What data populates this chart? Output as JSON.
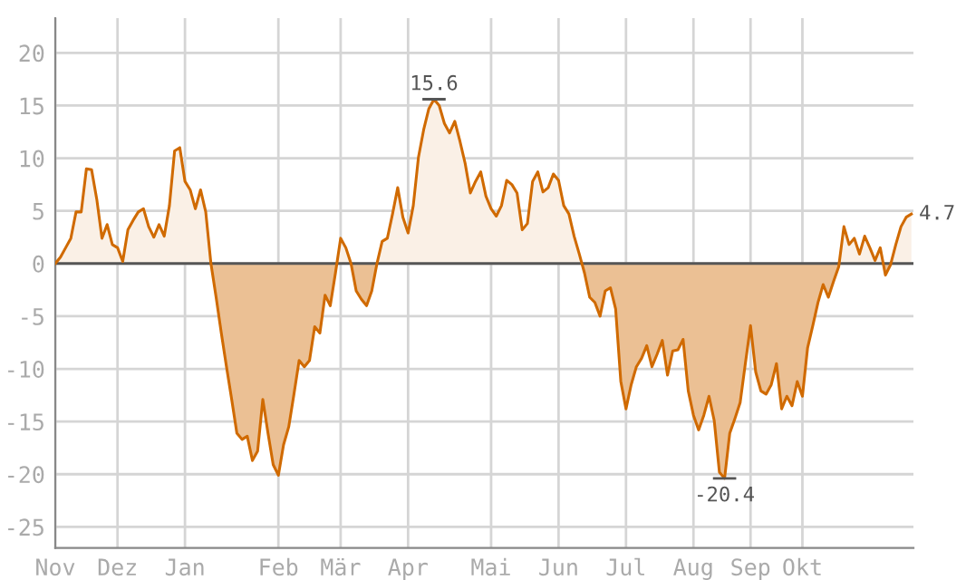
{
  "chart_data": {
    "type": "area",
    "categories": [
      "Nov",
      null,
      null,
      null,
      null,
      null,
      null,
      null,
      null,
      null,
      null,
      null,
      "Dez",
      null,
      null,
      null,
      null,
      null,
      null,
      null,
      null,
      null,
      null,
      null,
      null,
      "Jan",
      null,
      null,
      null,
      null,
      null,
      null,
      null,
      null,
      null,
      null,
      null,
      null,
      null,
      null,
      null,
      null,
      null,
      "Feb",
      null,
      null,
      null,
      null,
      null,
      null,
      null,
      null,
      null,
      null,
      null,
      "Mär",
      null,
      null,
      null,
      null,
      null,
      null,
      null,
      null,
      null,
      null,
      null,
      null,
      "Apr",
      null,
      null,
      null,
      null,
      null,
      null,
      null,
      null,
      null,
      null,
      null,
      null,
      null,
      null,
      null,
      "Mai",
      null,
      null,
      null,
      null,
      null,
      null,
      null,
      null,
      null,
      null,
      null,
      null,
      "Jun",
      null,
      null,
      null,
      null,
      null,
      null,
      null,
      null,
      null,
      null,
      null,
      null,
      "Jul",
      null,
      null,
      null,
      null,
      null,
      null,
      null,
      null,
      null,
      null,
      null,
      null,
      "Aug",
      null,
      null,
      null,
      null,
      null,
      null,
      null,
      null,
      null,
      null,
      "Sep",
      null,
      null,
      null,
      null,
      null,
      null,
      null,
      null,
      null,
      "Okt",
      null,
      null,
      null,
      null,
      null,
      null,
      null,
      null,
      null,
      null,
      null,
      null,
      null,
      null,
      null,
      null,
      null,
      null,
      null,
      null,
      null
    ],
    "series": [
      {
        "color": "#d06a00",
        "values": [
          0,
          0.6,
          1.5,
          2.4,
          4.9,
          4.9,
          9.0,
          8.9,
          6.1,
          2.4,
          3.7,
          1.8,
          1.5,
          0.2,
          3.2,
          4.1,
          4.9,
          5.2,
          3.5,
          2.5,
          3.7,
          2.6,
          5.5,
          10.7,
          11.0,
          7.8,
          7.0,
          5.2,
          7.0,
          4.9,
          0,
          -3.2,
          -6.6,
          -9.8,
          -12.9,
          -16.1,
          -16.7,
          -16.4,
          -18.7,
          -17.8,
          -12.9,
          -16.1,
          -19.1,
          -20.1,
          -17.2,
          -15.5,
          -12.4,
          -9.2,
          -9.8,
          -9.2,
          -6.0,
          -6.6,
          -3.0,
          -4.0,
          -0.9,
          2.4,
          1.5,
          0,
          -2.6,
          -3.4,
          -4.0,
          -2.6,
          0,
          2.1,
          2.4,
          4.7,
          7.2,
          4.4,
          2.9,
          5.5,
          10.1,
          12.7,
          14.7,
          15.6,
          15.0,
          13.3,
          12.4,
          13.5,
          11.6,
          9.5,
          6.7,
          7.8,
          8.7,
          6.4,
          5.2,
          4.5,
          5.5,
          7.9,
          7.5,
          6.7,
          3.2,
          3.8,
          7.8,
          8.7,
          6.8,
          7.2,
          8.5,
          7.9,
          5.5,
          4.7,
          2.6,
          0.9,
          -0.9,
          -3.2,
          -3.7,
          -5.0,
          -2.6,
          -2.3,
          -4.3,
          -11.2,
          -13.8,
          -11.5,
          -9.8,
          -9.0,
          -7.8,
          -9.8,
          -8.6,
          -7.3,
          -10.6,
          -8.3,
          -8.2,
          -7.2,
          -12.1,
          -14.4,
          -15.8,
          -14.4,
          -12.6,
          -14.9,
          -19.8,
          -20.4,
          -16.1,
          -14.7,
          -13.2,
          -9.5,
          -5.9,
          -10.3,
          -12.1,
          -12.4,
          -11.5,
          -9.5,
          -13.8,
          -12.6,
          -13.5,
          -11.2,
          -12.6,
          -8.0,
          -5.9,
          -3.7,
          -2.0,
          -3.2,
          -1.7,
          -0.3,
          3.5,
          1.8,
          2.4,
          0.9,
          2.6,
          1.5,
          0.3,
          1.5,
          -1.1,
          -0.1,
          1.8,
          3.5,
          4.4,
          4.7
        ]
      }
    ],
    "ylim": [
      -27,
      23.3
    ],
    "yticks": [
      -25,
      -20,
      -15,
      -10,
      -5,
      0,
      5,
      10,
      15,
      20
    ],
    "ref_lines": [
      {
        "axis": "y",
        "value": 0,
        "color": "#555555"
      }
    ],
    "annotations": [
      {
        "text": "15.6",
        "y": 15.6
      },
      {
        "text": "-20.4",
        "y": -20.4
      },
      "4.7"
    ],
    "grid": true,
    "legend": false
  }
}
